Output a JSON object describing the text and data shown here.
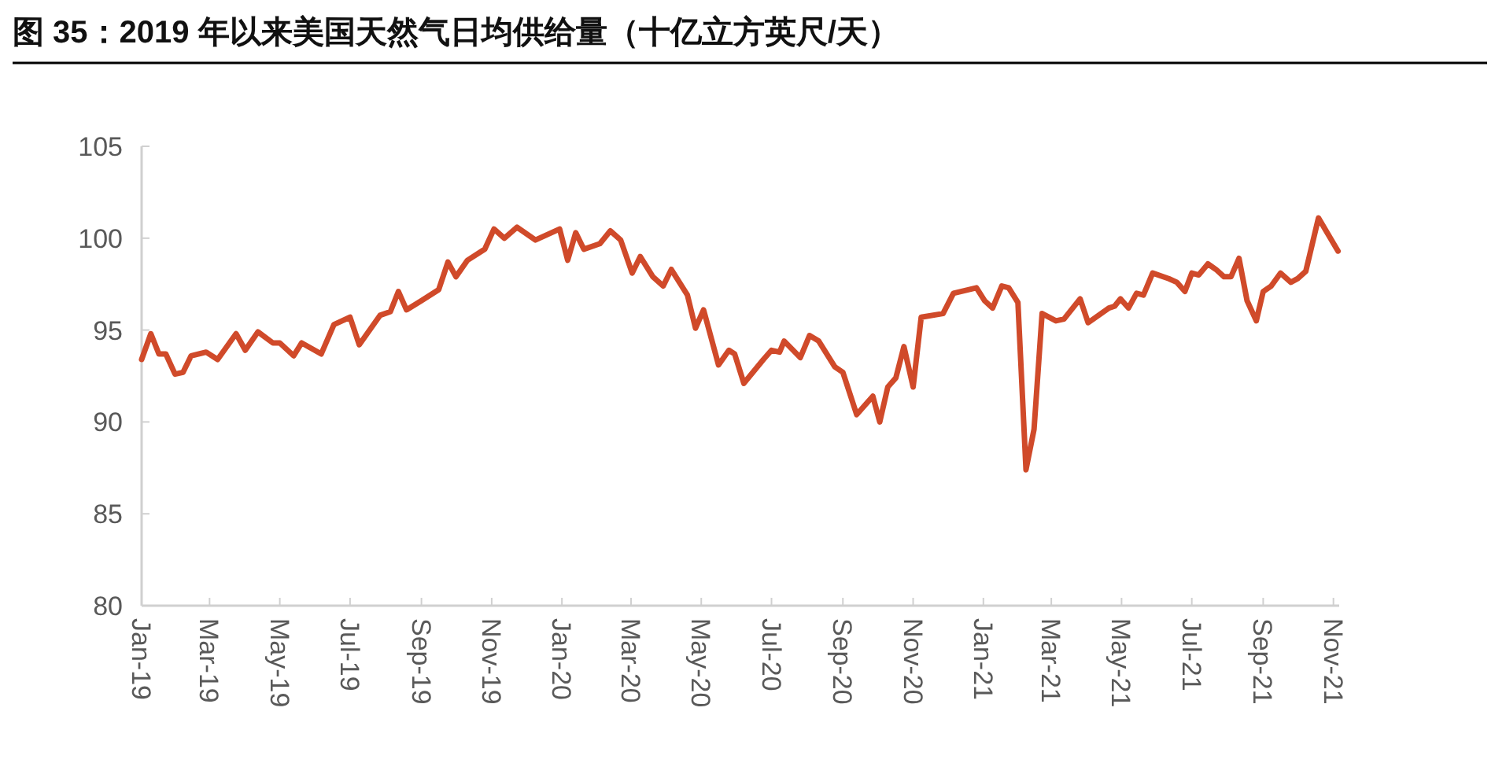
{
  "chart_data": {
    "type": "line",
    "title": "图 35：2019 年以来美国天然气日均供给量（十亿立方英尺/天）",
    "x": [
      "2019-01-01",
      "2019-01-09",
      "2019-01-16",
      "2019-01-22",
      "2019-01-30",
      "2019-02-06",
      "2019-02-13",
      "2019-02-26",
      "2019-03-08",
      "2019-03-24",
      "2019-04-01",
      "2019-04-12",
      "2019-04-25",
      "2019-05-01",
      "2019-05-13",
      "2019-05-20",
      "2019-06-06",
      "2019-06-17",
      "2019-07-01",
      "2019-07-09",
      "2019-07-27",
      "2019-08-05",
      "2019-08-12",
      "2019-08-19",
      "2019-09-01",
      "2019-09-16",
      "2019-09-24",
      "2019-10-01",
      "2019-10-11",
      "2019-10-26",
      "2019-11-03",
      "2019-11-12",
      "2019-11-23",
      "2019-12-09",
      "2019-12-30",
      "2020-01-06",
      "2020-01-13",
      "2020-01-20",
      "2020-02-03",
      "2020-02-12",
      "2020-02-21",
      "2020-03-02",
      "2020-03-09",
      "2020-03-20",
      "2020-03-29",
      "2020-04-05",
      "2020-04-19",
      "2020-04-26",
      "2020-05-03",
      "2020-05-16",
      "2020-05-25",
      "2020-05-30",
      "2020-06-07",
      "2020-06-24",
      "2020-07-01",
      "2020-07-08",
      "2020-07-12",
      "2020-07-26",
      "2020-08-03",
      "2020-08-11",
      "2020-08-25",
      "2020-09-01",
      "2020-09-13",
      "2020-09-27",
      "2020-10-03",
      "2020-10-10",
      "2020-10-17",
      "2020-10-24",
      "2020-11-01",
      "2020-11-08",
      "2020-11-27",
      "2020-12-06",
      "2020-12-26",
      "2021-01-02",
      "2021-01-09",
      "2021-01-17",
      "2021-01-23",
      "2021-01-31",
      "2021-02-07",
      "2021-02-14",
      "2021-02-21",
      "2021-03-05",
      "2021-03-12",
      "2021-03-26",
      "2021-04-02",
      "2021-04-20",
      "2021-04-25",
      "2021-04-30",
      "2021-05-07",
      "2021-05-14",
      "2021-05-20",
      "2021-05-28",
      "2021-06-11",
      "2021-06-18",
      "2021-06-25",
      "2021-07-01",
      "2021-07-07",
      "2021-07-15",
      "2021-07-22",
      "2021-07-29",
      "2021-08-04",
      "2021-08-11",
      "2021-08-18",
      "2021-08-26",
      "2021-09-01",
      "2021-09-08",
      "2021-09-16",
      "2021-09-25",
      "2021-10-01",
      "2021-10-08",
      "2021-10-19",
      "2021-11-05"
    ],
    "series": [
      {
        "color": "#d04a2a",
        "values": [
          93.4,
          94.8,
          93.7,
          93.7,
          92.6,
          92.7,
          93.6,
          93.8,
          93.4,
          94.8,
          93.9,
          94.9,
          94.3,
          94.3,
          93.6,
          94.3,
          93.7,
          95.3,
          95.7,
          94.2,
          95.8,
          96.0,
          97.1,
          96.1,
          96.6,
          97.2,
          98.7,
          97.9,
          98.8,
          99.4,
          100.5,
          100.0,
          100.6,
          99.9,
          100.5,
          98.8,
          100.3,
          99.4,
          99.7,
          100.4,
          99.9,
          98.1,
          99.0,
          97.9,
          97.4,
          98.3,
          96.9,
          95.1,
          96.1,
          93.1,
          93.9,
          93.7,
          92.1,
          93.4,
          93.9,
          93.8,
          94.4,
          93.5,
          94.7,
          94.4,
          93.0,
          92.7,
          90.4,
          91.4,
          90.0,
          91.9,
          92.4,
          94.1,
          91.9,
          95.7,
          95.9,
          97.0,
          97.3,
          96.6,
          96.2,
          97.4,
          97.3,
          96.5,
          87.4,
          89.6,
          95.9,
          95.5,
          95.6,
          96.7,
          95.4,
          96.2,
          96.3,
          96.7,
          96.2,
          97.0,
          96.9,
          98.1,
          97.8,
          97.6,
          97.1,
          98.1,
          98.0,
          98.6,
          98.3,
          97.9,
          97.9,
          98.9,
          96.6,
          95.5,
          97.1,
          97.4,
          98.1,
          97.6,
          97.8,
          98.2,
          101.1,
          99.3
        ]
      }
    ],
    "xlim": [
      "2019-01-01",
      "2021-11-06"
    ],
    "xticks": [
      {
        "value": "2019-01",
        "label": "Jan-19"
      },
      {
        "value": "2019-03",
        "label": "Mar-19"
      },
      {
        "value": "2019-05",
        "label": "May-19"
      },
      {
        "value": "2019-07",
        "label": "Jul-19"
      },
      {
        "value": "2019-09",
        "label": "Sep-19"
      },
      {
        "value": "2019-11",
        "label": "Nov-19"
      },
      {
        "value": "2020-01",
        "label": "Jan-20"
      },
      {
        "value": "2020-03",
        "label": "Mar-20"
      },
      {
        "value": "2020-05",
        "label": "May-20"
      },
      {
        "value": "2020-07",
        "label": "Jul-20"
      },
      {
        "value": "2020-09",
        "label": "Sep-20"
      },
      {
        "value": "2020-11",
        "label": "Nov-20"
      },
      {
        "value": "2021-01",
        "label": "Jan-21"
      },
      {
        "value": "2021-03",
        "label": "Mar-21"
      },
      {
        "value": "2021-05",
        "label": "May-21"
      },
      {
        "value": "2021-07",
        "label": "Jul-21"
      },
      {
        "value": "2021-09",
        "label": "Sep-21"
      },
      {
        "value": "2021-11",
        "label": "Nov-21"
      }
    ],
    "ylim": [
      80,
      105
    ],
    "yticks": [
      80,
      85,
      90,
      95,
      100,
      105
    ],
    "grid": false,
    "line_style": "solid",
    "marker": "none"
  }
}
